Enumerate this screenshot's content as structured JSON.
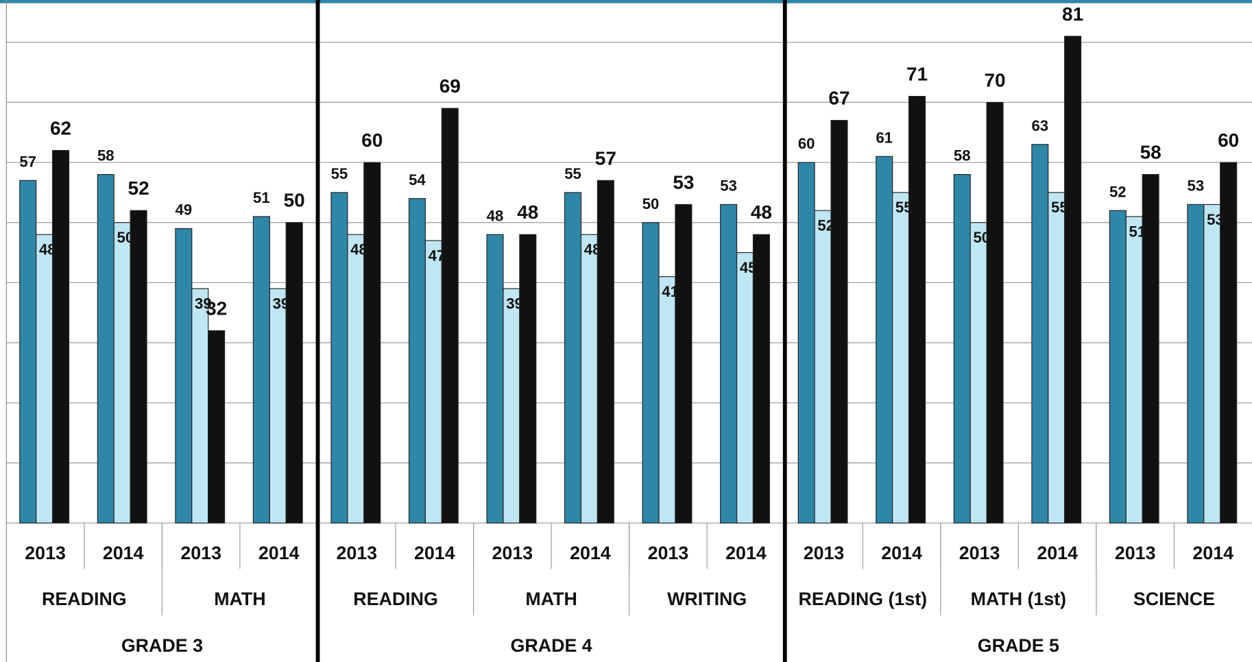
{
  "chart_data": {
    "type": "bar",
    "groups": [
      {
        "label": "GRADE 3",
        "groups": [
          {
            "label": "READING",
            "categories": [
              "2013",
              "2014"
            ]
          },
          {
            "label": "MATH",
            "categories": [
              "2013",
              "2014"
            ]
          }
        ]
      },
      {
        "label": "GRADE 4",
        "groups": [
          {
            "label": "READING",
            "categories": [
              "2013",
              "2014"
            ]
          },
          {
            "label": "MATH",
            "categories": [
              "2013",
              "2014"
            ]
          },
          {
            "label": "WRITING",
            "categories": [
              "2013",
              "2014"
            ]
          }
        ]
      },
      {
        "label": "GRADE 5",
        "groups": [
          {
            "label": "READING (1st)",
            "categories": [
              "2013",
              "2014"
            ]
          },
          {
            "label": "MATH (1st)",
            "categories": [
              "2013",
              "2014"
            ]
          },
          {
            "label": "SCIENCE",
            "categories": [
              "2013",
              "2014"
            ]
          }
        ]
      }
    ],
    "series": [
      {
        "color": "#2f87a8",
        "values": [
          57,
          58,
          49,
          51,
          55,
          54,
          48,
          55,
          50,
          53,
          60,
          61,
          58,
          63,
          52,
          53
        ]
      },
      {
        "color": "#bfe6f3",
        "values": [
          48,
          50,
          39,
          39,
          48,
          47,
          39,
          48,
          41,
          45,
          52,
          55,
          50,
          55,
          51,
          53
        ]
      },
      {
        "color": "#111111",
        "values": [
          62,
          52,
          32,
          50,
          60,
          69,
          48,
          57,
          53,
          48,
          67,
          71,
          70,
          81,
          58,
          60
        ]
      }
    ],
    "ylim": [
      0,
      86.5
    ],
    "yticks": [
      0,
      10,
      20,
      30,
      40,
      50,
      60,
      70,
      80
    ],
    "grid": true
  }
}
